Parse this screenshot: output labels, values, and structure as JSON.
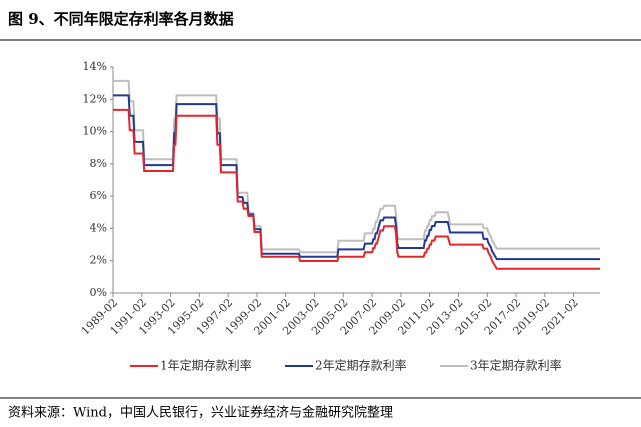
{
  "chart_data": {
    "type": "line",
    "title": "图 9、不同年限定存利率各月数据",
    "source": "资料来源：Wind，中国人民银行，兴业证券经济与金融研究院整理",
    "x": [
      "1989-02",
      "1990-03",
      "1990-04",
      "1990-07",
      "1990-08",
      "1991-03",
      "1991-04",
      "1993-04",
      "1993-05",
      "1993-06",
      "1993-07",
      "1996-04",
      "1996-05",
      "1996-07",
      "1996-08",
      "1997-09",
      "1997-10",
      "1998-02",
      "1998-03",
      "1998-06",
      "1998-07",
      "1998-11",
      "1998-12",
      "1999-05",
      "1999-06",
      "2002-01",
      "2002-02",
      "2004-09",
      "2004-10",
      "2006-07",
      "2006-08",
      "2007-02",
      "2007-03",
      "2007-04",
      "2007-05",
      "2007-06",
      "2007-07",
      "2007-08",
      "2007-09",
      "2007-11",
      "2007-12",
      "2008-09",
      "2008-10",
      "2008-11",
      "2008-12",
      "2010-09",
      "2010-10",
      "2010-11",
      "2010-12",
      "2011-01",
      "2011-02",
      "2011-03",
      "2011-04",
      "2011-06",
      "2011-07",
      "2012-05",
      "2012-06",
      "2012-07",
      "2014-10",
      "2014-11",
      "2015-02",
      "2015-03",
      "2015-05",
      "2015-06",
      "2015-08",
      "2015-10",
      "2022-12"
    ],
    "series": [
      {
        "name": "1年定期存款利率",
        "color": "#e3262b",
        "values": [
          11.34,
          11.34,
          10.08,
          10.08,
          8.64,
          8.64,
          7.56,
          7.56,
          9.18,
          9.18,
          10.98,
          10.98,
          9.18,
          9.18,
          7.47,
          7.47,
          5.67,
          5.67,
          5.22,
          5.22,
          4.77,
          4.77,
          3.78,
          3.78,
          2.25,
          2.25,
          1.98,
          1.98,
          2.25,
          2.25,
          2.52,
          2.52,
          2.79,
          2.79,
          3.06,
          3.06,
          3.33,
          3.6,
          3.87,
          3.87,
          4.14,
          4.14,
          3.6,
          2.52,
          2.25,
          2.25,
          2.5,
          2.5,
          2.75,
          2.75,
          3.0,
          3.0,
          3.25,
          3.25,
          3.5,
          3.5,
          3.25,
          3.0,
          3.0,
          2.75,
          2.75,
          2.5,
          2.25,
          2.0,
          1.75,
          1.5,
          1.5
        ]
      },
      {
        "name": "2年定期存款利率",
        "color": "#1f3a8f",
        "values": [
          12.24,
          12.24,
          10.98,
          10.98,
          9.36,
          9.36,
          7.92,
          7.92,
          9.9,
          9.9,
          11.7,
          11.7,
          9.9,
          9.9,
          7.92,
          7.92,
          5.94,
          5.94,
          5.58,
          5.58,
          4.86,
          4.86,
          3.96,
          3.96,
          2.43,
          2.43,
          2.25,
          2.25,
          2.7,
          2.7,
          3.06,
          3.06,
          3.33,
          3.33,
          3.69,
          3.69,
          3.96,
          4.23,
          4.5,
          4.5,
          4.68,
          4.68,
          4.14,
          3.06,
          2.79,
          2.79,
          3.25,
          3.25,
          3.55,
          3.55,
          3.9,
          3.9,
          4.15,
          4.15,
          4.4,
          4.4,
          4.1,
          3.75,
          3.75,
          3.35,
          3.35,
          3.1,
          2.85,
          2.6,
          2.35,
          2.1,
          2.1
        ]
      },
      {
        "name": "3年定期存款利率",
        "color": "#bdbdbd",
        "values": [
          13.14,
          13.14,
          11.88,
          11.88,
          10.08,
          10.08,
          8.28,
          8.28,
          10.8,
          10.8,
          12.24,
          12.24,
          10.8,
          10.8,
          8.28,
          8.28,
          6.21,
          6.21,
          6.21,
          6.21,
          4.95,
          4.95,
          4.14,
          4.14,
          2.7,
          2.7,
          2.52,
          2.52,
          3.24,
          3.24,
          3.69,
          3.69,
          3.96,
          3.96,
          4.41,
          4.41,
          4.68,
          4.95,
          5.22,
          5.22,
          5.4,
          5.4,
          4.77,
          3.6,
          3.33,
          3.33,
          3.85,
          3.85,
          4.15,
          4.15,
          4.5,
          4.5,
          4.75,
          4.75,
          5.0,
          5.0,
          4.65,
          4.25,
          4.25,
          4.0,
          4.0,
          3.75,
          3.5,
          3.25,
          3.0,
          2.75,
          2.75
        ]
      }
    ],
    "xlim": [
      "1989-02",
      "2022-12"
    ],
    "xticks": [
      "1989-02",
      "1991-02",
      "1993-02",
      "1995-02",
      "1997-02",
      "1999-02",
      "2001-02",
      "2003-02",
      "2005-02",
      "2007-02",
      "2009-02",
      "2011-02",
      "2013-02",
      "2015-02",
      "2017-02",
      "2019-02",
      "2021-02"
    ],
    "ylim": [
      0,
      14
    ],
    "yticks": [
      {
        "value": 0,
        "label": "0%"
      },
      {
        "value": 2,
        "label": "2%"
      },
      {
        "value": 4,
        "label": "4%"
      },
      {
        "value": 6,
        "label": "6%"
      },
      {
        "value": 8,
        "label": "8%"
      },
      {
        "value": 10,
        "label": "10%"
      },
      {
        "value": 12,
        "label": "12%"
      },
      {
        "value": 14,
        "label": "14%"
      }
    ]
  }
}
